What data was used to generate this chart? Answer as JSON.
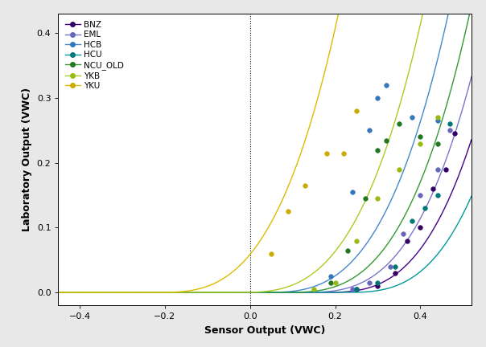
{
  "xlabel": "Sensor Output (VWC)",
  "ylabel": "Laboratory Output (VWC)",
  "xlim": [
    -0.45,
    0.52
  ],
  "ylim": [
    -0.02,
    0.43
  ],
  "xticks": [
    -0.4,
    -0.2,
    0.0,
    0.2,
    0.4
  ],
  "yticks": [
    0.0,
    0.1,
    0.2,
    0.3,
    0.4
  ],
  "background": "#ffffff",
  "outer_bg": "#e8e8e8",
  "sites": [
    {
      "name": "BNZ",
      "dot_color": "#330066",
      "line_color": "#440088",
      "b": 0.17,
      "scale": 5.5,
      "pts_x": [
        0.25,
        0.3,
        0.34,
        0.37,
        0.4,
        0.43,
        0.46,
        0.48
      ],
      "pts_y": [
        0.005,
        0.01,
        0.03,
        0.08,
        0.1,
        0.16,
        0.19,
        0.245
      ]
    },
    {
      "name": "EML",
      "dot_color": "#6666BB",
      "line_color": "#7777CC",
      "b": 0.12,
      "scale": 5.2,
      "pts_x": [
        0.24,
        0.28,
        0.33,
        0.36,
        0.4,
        0.44,
        0.47
      ],
      "pts_y": [
        0.005,
        0.015,
        0.04,
        0.09,
        0.15,
        0.19,
        0.25
      ]
    },
    {
      "name": "HCB",
      "dot_color": "#3377BB",
      "line_color": "#4488CC",
      "b": 0.03,
      "scale": 5.2,
      "pts_x": [
        0.19,
        0.24,
        0.28,
        0.3,
        0.32,
        0.38,
        0.44
      ],
      "pts_y": [
        0.025,
        0.155,
        0.25,
        0.3,
        0.32,
        0.27,
        0.265
      ]
    },
    {
      "name": "HCU",
      "dot_color": "#007777",
      "line_color": "#009999",
      "b": 0.22,
      "scale": 5.5,
      "pts_x": [
        0.25,
        0.3,
        0.34,
        0.38,
        0.41,
        0.44,
        0.47
      ],
      "pts_y": [
        0.005,
        0.015,
        0.04,
        0.11,
        0.13,
        0.15,
        0.26
      ]
    },
    {
      "name": "NCU_OLD",
      "dot_color": "#227722",
      "line_color": "#339933",
      "b": 0.08,
      "scale": 5.2,
      "pts_x": [
        0.19,
        0.23,
        0.27,
        0.3,
        0.32,
        0.35,
        0.4,
        0.44
      ],
      "pts_y": [
        0.015,
        0.065,
        0.145,
        0.22,
        0.235,
        0.26,
        0.24,
        0.23
      ]
    },
    {
      "name": "YKB",
      "dot_color": "#99BB11",
      "line_color": "#AACC22",
      "b": -0.03,
      "scale": 5.2,
      "pts_x": [
        0.15,
        0.2,
        0.25,
        0.3,
        0.35,
        0.4,
        0.44
      ],
      "pts_y": [
        0.005,
        0.015,
        0.08,
        0.145,
        0.19,
        0.23,
        0.27
      ]
    },
    {
      "name": "YKU",
      "dot_color": "#CCAA00",
      "line_color": "#DDBB00",
      "b": -0.22,
      "scale": 5.5,
      "pts_x": [
        0.05,
        0.09,
        0.13,
        0.18,
        0.22,
        0.25
      ],
      "pts_y": [
        0.06,
        0.125,
        0.165,
        0.215,
        0.215,
        0.28
      ]
    }
  ]
}
